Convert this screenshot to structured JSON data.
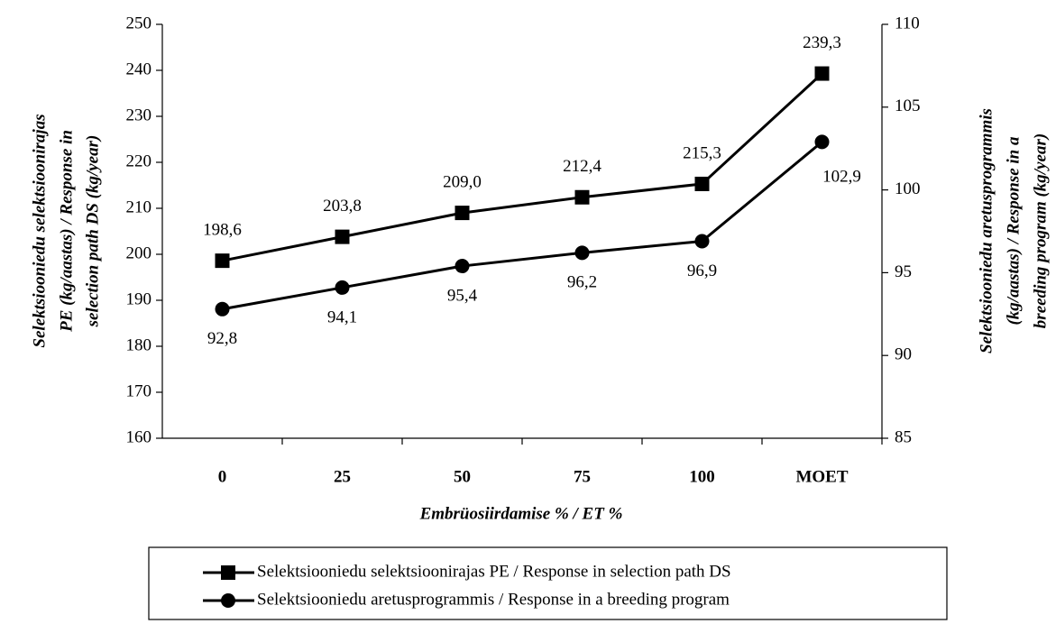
{
  "chart_data": {
    "type": "line",
    "categories": [
      "0",
      "25",
      "50",
      "75",
      "100",
      "MOET"
    ],
    "series": [
      {
        "name": "Selektsiooniedu selektsioonirajas PE / Response in selection path DS",
        "color": "#000000",
        "marker": "square",
        "axis": "y",
        "values": [
          198.6,
          203.8,
          209.0,
          212.4,
          215.3,
          239.3
        ],
        "value_labels": [
          "198,6",
          "203,8",
          "209,0",
          "212,4",
          "215,3",
          "239,3"
        ]
      },
      {
        "name": "Selektsiooniedu aretusprogrammis / Response in a breeding program",
        "color": "#000000",
        "marker": "circle",
        "axis": "y2",
        "values": [
          92.8,
          94.1,
          95.4,
          96.2,
          96.9,
          102.9
        ],
        "value_labels": [
          "92,8",
          "94,1",
          "95,4",
          "96,2",
          "96,9",
          "102,9"
        ]
      }
    ],
    "xlabel": "Embrüosiirdamise % / ET %",
    "ylabel": [
      "Selektsiooniedu selektsioonirajas",
      "PE (kg/aastas) / Response in",
      "selection path DS (kg/year)"
    ],
    "y2label": [
      "Selektsiooniedu aretusprogrammis",
      "(kg/aastas) / Response in a",
      "breeding program (kg/year)"
    ],
    "ylim": [
      160,
      250
    ],
    "yticks": [
      160,
      170,
      180,
      190,
      200,
      210,
      220,
      230,
      240,
      250
    ],
    "y2lim": [
      85,
      110
    ],
    "y2ticks": [
      85,
      90,
      95,
      100,
      105,
      110
    ],
    "legend": "bottom"
  }
}
